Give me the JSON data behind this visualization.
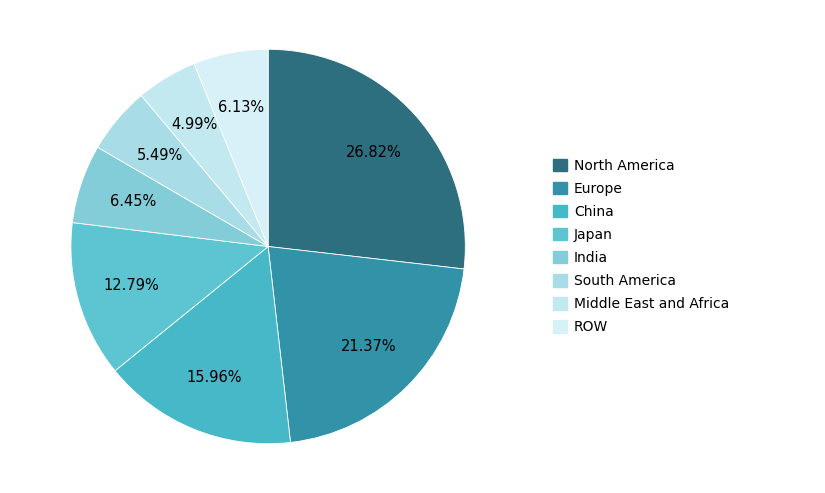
{
  "labels": [
    "North America",
    "Europe",
    "China",
    "Japan",
    "India",
    "South America",
    "Middle East and Africa",
    "ROW"
  ],
  "values": [
    26.82,
    21.37,
    15.96,
    12.79,
    6.45,
    5.49,
    4.99,
    6.13
  ],
  "colors": [
    "#2d6f7f",
    "#3192a8",
    "#47b8c8",
    "#5dc5d2",
    "#82cdd8",
    "#a8dce6",
    "#c2e8f0",
    "#d8f0f8"
  ],
  "background_color": "#ffffff",
  "text_color": "#000000",
  "label_fontsize": 10.5,
  "legend_fontsize": 10
}
